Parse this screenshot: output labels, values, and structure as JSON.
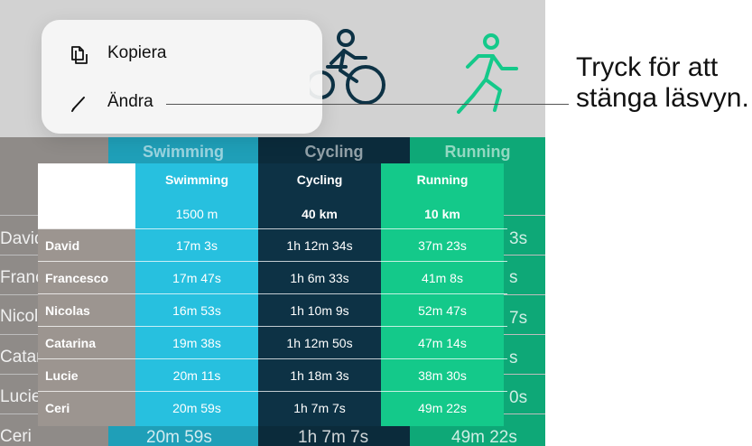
{
  "menu": {
    "items": [
      {
        "icon": "copy-icon",
        "label": "Kopiera"
      },
      {
        "icon": "pencil-icon",
        "label": "Ändra"
      }
    ]
  },
  "callout": {
    "line1": "Tryck för att",
    "line2": "stänga läsvyn."
  },
  "colors": {
    "swimming": "#27c0df",
    "cycling": "#0d3245",
    "running": "#14c98a",
    "names": "#9c9590"
  },
  "background": {
    "headers": [
      "Swimming",
      "Cycling",
      "Running"
    ],
    "names": [
      "David",
      "Franc",
      "Nicola",
      "Catar",
      "Lucie",
      "Ceri"
    ],
    "running_tail": [
      "3s",
      "s",
      "7s",
      "s",
      "0s",
      "2s"
    ],
    "last_row": [
      "20m 59s",
      "1h 7m 7s",
      "49m 22s"
    ]
  },
  "table": {
    "columns": [
      {
        "name": "Swimming",
        "distance": "1500 m"
      },
      {
        "name": "Cycling",
        "distance": "40 km"
      },
      {
        "name": "Running",
        "distance": "10 km"
      }
    ],
    "rows": [
      {
        "name": "David",
        "swim": "17m 3s",
        "cycle": "1h 12m 34s",
        "run": "37m 23s"
      },
      {
        "name": "Francesco",
        "swim": "17m 47s",
        "cycle": "1h 6m 33s",
        "run": "41m 8s"
      },
      {
        "name": "Nicolas",
        "swim": "16m 53s",
        "cycle": "1h 10m 9s",
        "run": "52m 47s"
      },
      {
        "name": "Catarina",
        "swim": "19m 38s",
        "cycle": "1h 12m 50s",
        "run": "47m 14s"
      },
      {
        "name": "Lucie",
        "swim": "20m 11s",
        "cycle": "1h 18m 3s",
        "run": "38m 30s"
      },
      {
        "name": "Ceri",
        "swim": "20m 59s",
        "cycle": "1h 7m 7s",
        "run": "49m 22s"
      }
    ]
  }
}
